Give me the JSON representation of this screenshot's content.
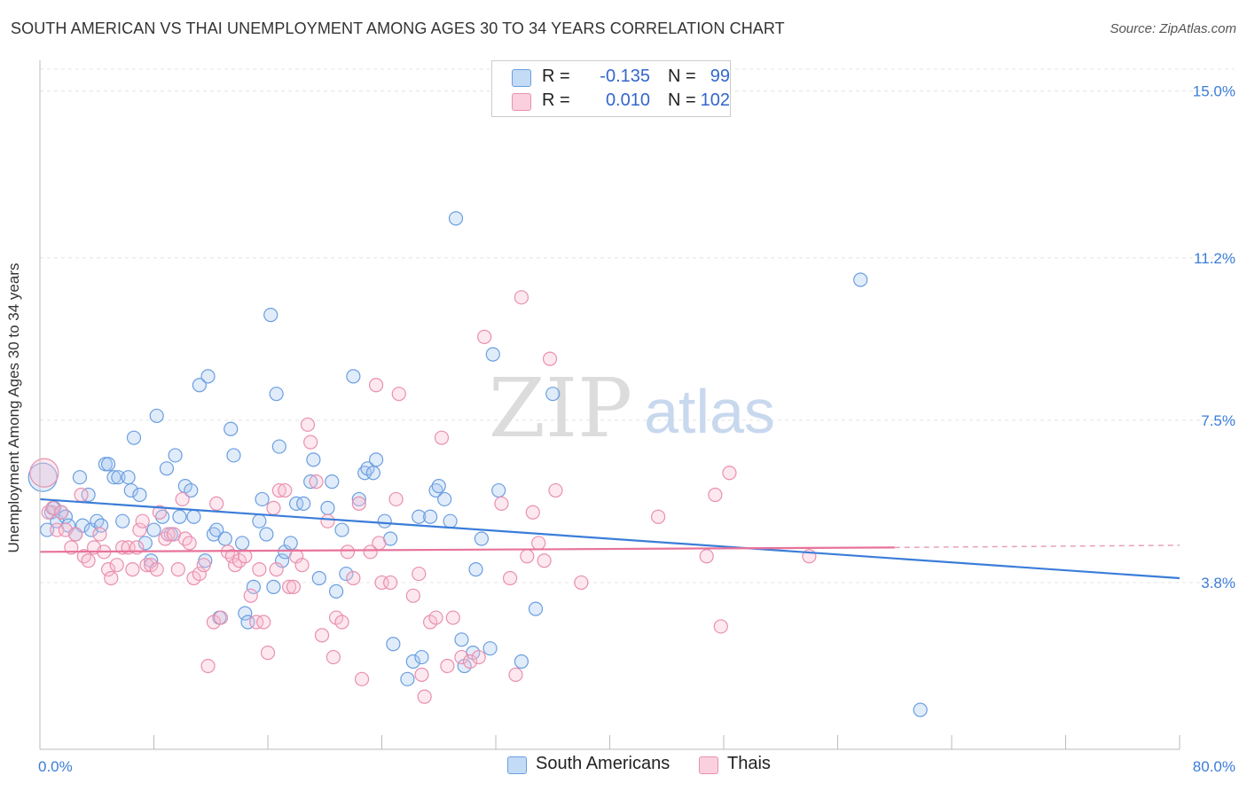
{
  "title": "SOUTH AMERICAN VS THAI UNEMPLOYMENT AMONG AGES 30 TO 34 YEARS CORRELATION CHART",
  "source": "Source: ZipAtlas.com",
  "watermark": {
    "zip": "ZIP",
    "atlas": "atlas"
  },
  "legend": {
    "r_label": "R =",
    "n_label": "N =",
    "rows": [
      {
        "r": "-0.135",
        "n": "99",
        "fill": "#a8c8f0",
        "stroke": "#6a9ee0"
      },
      {
        "r": "0.010",
        "n": "102",
        "fill": "#f8bcd0",
        "stroke": "#e890ae"
      }
    ]
  },
  "bottom_legend": [
    "South Americans",
    "Thais"
  ],
  "chart_data": {
    "type": "scatter",
    "xlabel": "",
    "ylabel": "Unemployment Among Ages 30 to 34 years",
    "xlim": [
      0,
      80
    ],
    "ylim": [
      0,
      15.5
    ],
    "x_tick_labels": [
      {
        "value": 0,
        "label": "0.0%"
      },
      {
        "value": 80,
        "label": "80.0%"
      }
    ],
    "y_tick_labels": [
      {
        "value": 3.8,
        "label": "3.8%"
      },
      {
        "value": 7.5,
        "label": "7.5%"
      },
      {
        "value": 11.2,
        "label": "11.2%"
      },
      {
        "value": 15.0,
        "label": "15.0%"
      }
    ],
    "x_minor_ticks": [
      0,
      8,
      16,
      24,
      32,
      40,
      48,
      56,
      64,
      72,
      80
    ],
    "grid": true,
    "legend_position": "top-center",
    "colors": {
      "blue": "#3b7dd8",
      "pink": "#e8739a",
      "blue_fill": "#a8c8f0",
      "pink_fill": "#f8bcd0"
    },
    "series": [
      {
        "name": "South Americans",
        "color": "#3b7dd8",
        "trend": {
          "x": [
            0,
            80
          ],
          "y": [
            5.7,
            3.9
          ]
        },
        "points": [
          [
            0.2,
            6.2
          ],
          [
            0.5,
            5.0
          ],
          [
            0.8,
            5.4
          ],
          [
            1.0,
            5.5
          ],
          [
            1.2,
            5.2
          ],
          [
            1.5,
            5.4
          ],
          [
            1.8,
            5.3
          ],
          [
            2.0,
            5.1
          ],
          [
            2.5,
            4.9
          ],
          [
            2.8,
            6.2
          ],
          [
            3.0,
            5.1
          ],
          [
            3.4,
            5.8
          ],
          [
            3.6,
            5.0
          ],
          [
            4.0,
            5.2
          ],
          [
            4.3,
            5.1
          ],
          [
            4.6,
            6.5
          ],
          [
            4.8,
            6.5
          ],
          [
            5.2,
            6.2
          ],
          [
            5.5,
            6.2
          ],
          [
            5.8,
            5.2
          ],
          [
            6.2,
            6.2
          ],
          [
            6.4,
            5.9
          ],
          [
            6.6,
            7.1
          ],
          [
            7.0,
            5.8
          ],
          [
            7.4,
            4.7
          ],
          [
            7.8,
            4.3
          ],
          [
            8.0,
            5.0
          ],
          [
            8.2,
            7.6
          ],
          [
            8.6,
            5.3
          ],
          [
            8.9,
            6.4
          ],
          [
            9.2,
            4.9
          ],
          [
            9.5,
            6.7
          ],
          [
            9.8,
            5.3
          ],
          [
            10.2,
            6.0
          ],
          [
            10.6,
            5.9
          ],
          [
            10.8,
            5.3
          ],
          [
            11.2,
            8.3
          ],
          [
            11.6,
            4.3
          ],
          [
            11.8,
            8.5
          ],
          [
            12.2,
            4.9
          ],
          [
            12.4,
            5.0
          ],
          [
            12.6,
            3.0
          ],
          [
            13.0,
            4.8
          ],
          [
            13.4,
            7.3
          ],
          [
            13.6,
            6.7
          ],
          [
            14.2,
            4.7
          ],
          [
            14.4,
            3.1
          ],
          [
            14.6,
            2.9
          ],
          [
            15.0,
            3.7
          ],
          [
            15.4,
            5.2
          ],
          [
            15.6,
            5.7
          ],
          [
            15.9,
            4.9
          ],
          [
            16.2,
            9.9
          ],
          [
            16.4,
            3.7
          ],
          [
            16.6,
            8.1
          ],
          [
            16.8,
            6.9
          ],
          [
            17.0,
            4.3
          ],
          [
            17.2,
            4.5
          ],
          [
            17.6,
            4.7
          ],
          [
            18.0,
            5.6
          ],
          [
            18.5,
            5.6
          ],
          [
            19.0,
            6.1
          ],
          [
            19.2,
            6.6
          ],
          [
            19.6,
            3.9
          ],
          [
            20.2,
            5.5
          ],
          [
            20.5,
            6.1
          ],
          [
            20.8,
            3.6
          ],
          [
            21.2,
            5.0
          ],
          [
            21.5,
            4.0
          ],
          [
            22.0,
            8.5
          ],
          [
            22.4,
            5.7
          ],
          [
            22.8,
            6.3
          ],
          [
            23.0,
            6.4
          ],
          [
            23.4,
            6.3
          ],
          [
            23.6,
            6.6
          ],
          [
            24.2,
            5.2
          ],
          [
            24.6,
            4.8
          ],
          [
            24.8,
            2.4
          ],
          [
            25.8,
            1.6
          ],
          [
            26.2,
            2.0
          ],
          [
            26.6,
            5.3
          ],
          [
            26.8,
            2.1
          ],
          [
            27.4,
            5.3
          ],
          [
            27.8,
            5.9
          ],
          [
            28.0,
            6.0
          ],
          [
            28.4,
            5.7
          ],
          [
            28.8,
            5.2
          ],
          [
            29.2,
            12.1
          ],
          [
            29.6,
            2.5
          ],
          [
            29.8,
            1.9
          ],
          [
            30.4,
            2.2
          ],
          [
            30.6,
            4.1
          ],
          [
            31.0,
            4.8
          ],
          [
            31.6,
            2.3
          ],
          [
            31.8,
            9.0
          ],
          [
            32.2,
            5.9
          ],
          [
            33.8,
            2.0
          ],
          [
            34.8,
            3.2
          ],
          [
            36.0,
            8.1
          ],
          [
            57.6,
            10.7
          ],
          [
            61.8,
            0.9
          ]
        ]
      },
      {
        "name": "Thais",
        "color": "#e8739a",
        "trend": {
          "x": [
            0,
            60
          ],
          "y": [
            4.5,
            4.6
          ]
        },
        "trend_dashed": {
          "x": [
            60,
            80
          ],
          "y": [
            4.6,
            4.65
          ]
        },
        "points": [
          [
            0.3,
            6.3
          ],
          [
            0.6,
            5.4
          ],
          [
            0.9,
            5.5
          ],
          [
            1.2,
            5.0
          ],
          [
            1.5,
            5.4
          ],
          [
            1.8,
            5.0
          ],
          [
            2.2,
            4.6
          ],
          [
            2.5,
            4.9
          ],
          [
            2.9,
            5.8
          ],
          [
            3.1,
            4.4
          ],
          [
            3.4,
            4.3
          ],
          [
            3.8,
            4.6
          ],
          [
            4.2,
            4.9
          ],
          [
            4.5,
            4.5
          ],
          [
            4.8,
            4.1
          ],
          [
            5.0,
            3.9
          ],
          [
            5.4,
            4.2
          ],
          [
            5.8,
            4.6
          ],
          [
            6.2,
            4.6
          ],
          [
            6.5,
            4.1
          ],
          [
            6.8,
            4.6
          ],
          [
            7.0,
            5.0
          ],
          [
            7.2,
            5.2
          ],
          [
            7.5,
            4.2
          ],
          [
            7.8,
            4.2
          ],
          [
            8.2,
            4.1
          ],
          [
            8.4,
            5.4
          ],
          [
            8.8,
            4.8
          ],
          [
            9.0,
            4.9
          ],
          [
            9.4,
            4.9
          ],
          [
            9.7,
            4.1
          ],
          [
            10.0,
            5.7
          ],
          [
            10.2,
            4.8
          ],
          [
            10.5,
            4.7
          ],
          [
            10.8,
            3.9
          ],
          [
            11.2,
            4.0
          ],
          [
            11.5,
            4.2
          ],
          [
            11.8,
            1.9
          ],
          [
            12.2,
            2.9
          ],
          [
            12.4,
            5.6
          ],
          [
            12.7,
            3.0
          ],
          [
            13.2,
            4.5
          ],
          [
            13.5,
            4.4
          ],
          [
            13.7,
            4.2
          ],
          [
            14.0,
            4.3
          ],
          [
            14.4,
            4.4
          ],
          [
            14.8,
            3.5
          ],
          [
            15.2,
            2.9
          ],
          [
            15.4,
            4.1
          ],
          [
            15.7,
            2.9
          ],
          [
            16.0,
            2.2
          ],
          [
            16.4,
            5.5
          ],
          [
            16.6,
            4.1
          ],
          [
            16.8,
            5.9
          ],
          [
            17.2,
            5.9
          ],
          [
            17.5,
            3.7
          ],
          [
            17.8,
            3.7
          ],
          [
            18.0,
            4.4
          ],
          [
            18.4,
            4.2
          ],
          [
            18.8,
            7.4
          ],
          [
            19.0,
            7.0
          ],
          [
            19.4,
            6.1
          ],
          [
            19.8,
            2.6
          ],
          [
            20.2,
            5.2
          ],
          [
            20.6,
            2.1
          ],
          [
            20.8,
            3.0
          ],
          [
            21.2,
            2.9
          ],
          [
            21.6,
            4.5
          ],
          [
            22.0,
            3.9
          ],
          [
            22.4,
            5.6
          ],
          [
            22.6,
            1.6
          ],
          [
            23.2,
            4.5
          ],
          [
            23.6,
            8.3
          ],
          [
            23.8,
            4.7
          ],
          [
            24.0,
            3.8
          ],
          [
            24.6,
            3.8
          ],
          [
            25.0,
            5.7
          ],
          [
            25.2,
            8.1
          ],
          [
            26.2,
            3.5
          ],
          [
            26.6,
            4.0
          ],
          [
            26.8,
            1.7
          ],
          [
            27.0,
            1.2
          ],
          [
            27.4,
            2.9
          ],
          [
            27.8,
            3.0
          ],
          [
            28.2,
            7.1
          ],
          [
            28.6,
            1.9
          ],
          [
            29.0,
            3.0
          ],
          [
            29.6,
            2.1
          ],
          [
            30.2,
            2.0
          ],
          [
            30.8,
            2.1
          ],
          [
            31.2,
            9.4
          ],
          [
            32.4,
            5.6
          ],
          [
            33.0,
            3.9
          ],
          [
            33.4,
            1.7
          ],
          [
            33.8,
            10.3
          ],
          [
            34.2,
            4.4
          ],
          [
            34.6,
            5.4
          ],
          [
            35.0,
            4.7
          ],
          [
            35.4,
            4.3
          ],
          [
            35.8,
            8.9
          ],
          [
            36.2,
            5.9
          ],
          [
            38.0,
            3.8
          ],
          [
            43.4,
            5.3
          ],
          [
            46.8,
            4.4
          ],
          [
            47.4,
            5.8
          ],
          [
            47.8,
            2.8
          ],
          [
            48.4,
            6.3
          ],
          [
            54.0,
            4.4
          ]
        ]
      }
    ]
  }
}
